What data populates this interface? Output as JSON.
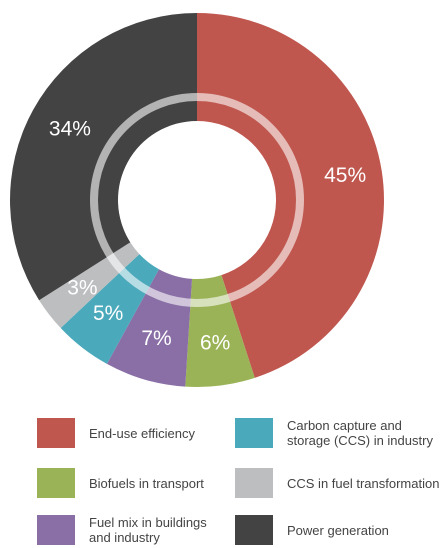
{
  "chart_data": {
    "type": "donut",
    "categories": [
      "End-use efficiency",
      "Biofuels in transport",
      "Fuel mix in buildings and industry",
      "Carbon capture and storage (CCS) in industry",
      "CCS in fuel transformation",
      "Power generation"
    ],
    "values": [
      45,
      6,
      7,
      5,
      3,
      34
    ],
    "value_labels": [
      "45%",
      "6%",
      "7%",
      "5%",
      "3%",
      "34%"
    ],
    "colors": [
      "#c0574f",
      "#9bb357",
      "#8a6fa6",
      "#4aa9bb",
      "#bcbec0",
      "#434343"
    ]
  }
}
